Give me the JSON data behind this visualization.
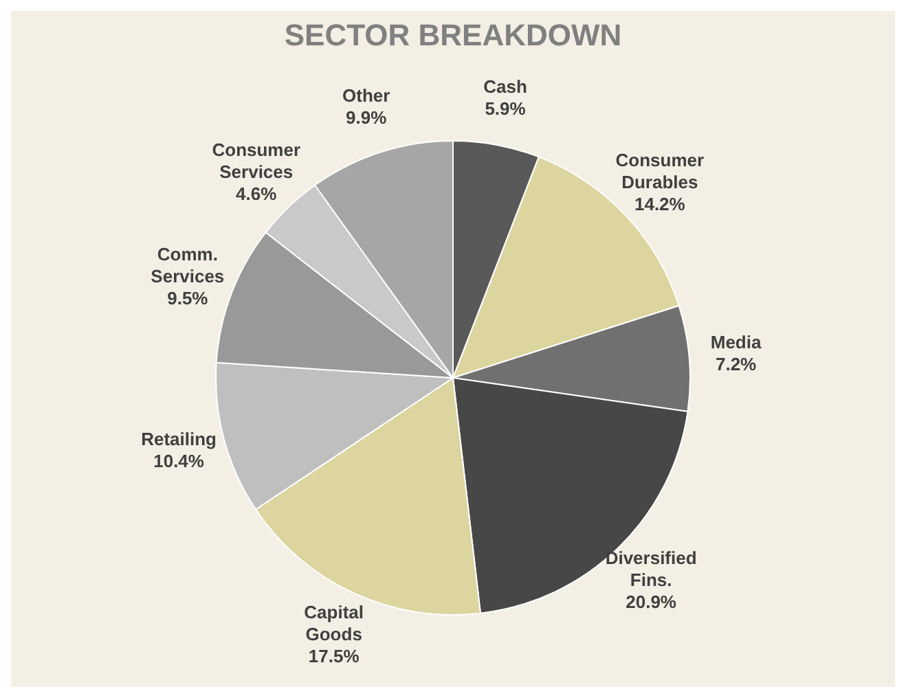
{
  "chart_data": {
    "type": "pie",
    "title": "SECTOR BREAKDOWN",
    "categories": [
      "Cash",
      "Consumer Durables",
      "Media",
      "Diversified Fins.",
      "Capital Goods",
      "Retailing",
      "Comm. Services",
      "Consumer Services",
      "Other"
    ],
    "values": [
      5.9,
      14.2,
      7.2,
      20.9,
      17.5,
      10.4,
      9.5,
      4.6,
      9.9
    ],
    "value_labels": [
      "5.9%",
      "14.2%",
      "7.2%",
      "20.9%",
      "17.5%",
      "10.4%",
      "9.5%",
      "4.6%",
      "9.9%"
    ],
    "colors": [
      "#595959",
      "#ddd59f",
      "#707070",
      "#474747",
      "#ddd59f",
      "#bfbfbf",
      "#999999",
      "#c9c9c9",
      "#a6a6a6"
    ],
    "legend": false
  }
}
